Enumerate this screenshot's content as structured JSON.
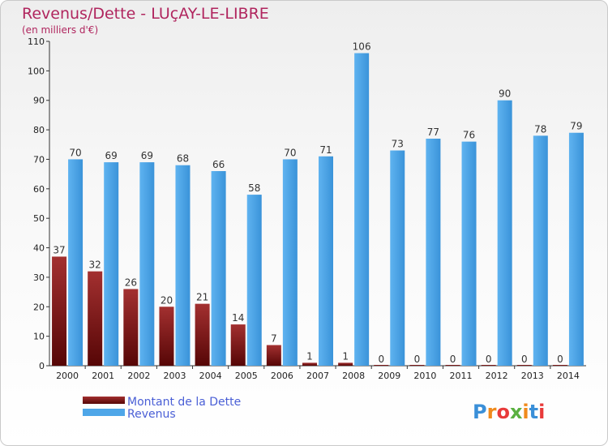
{
  "chart_data": {
    "type": "bar",
    "title": "Revenus/Dette - LUçAY-LE-LIBRE",
    "subtitle": "(en milliers d'€)",
    "categories": [
      "2000",
      "2001",
      "2002",
      "2003",
      "2004",
      "2005",
      "2006",
      "2007",
      "2008",
      "2009",
      "2010",
      "2011",
      "2012",
      "2013",
      "2014"
    ],
    "series": [
      {
        "name": "Montant de la Dette",
        "color": "#7a1414",
        "values": [
          37,
          32,
          26,
          20,
          21,
          14,
          7,
          1,
          1,
          0,
          0,
          0,
          0,
          0,
          0
        ]
      },
      {
        "name": "Revenus",
        "color": "#4ea6e8",
        "values": [
          70,
          69,
          69,
          68,
          66,
          58,
          70,
          71,
          106,
          73,
          77,
          76,
          90,
          78,
          79
        ]
      }
    ],
    "ylim": [
      0,
      110
    ],
    "yticks": [
      0,
      10,
      20,
      30,
      40,
      50,
      60,
      70,
      80,
      90,
      100,
      110
    ],
    "grid": false,
    "legend_position": "bottom-left"
  },
  "logo": {
    "text": "Proxiti"
  }
}
